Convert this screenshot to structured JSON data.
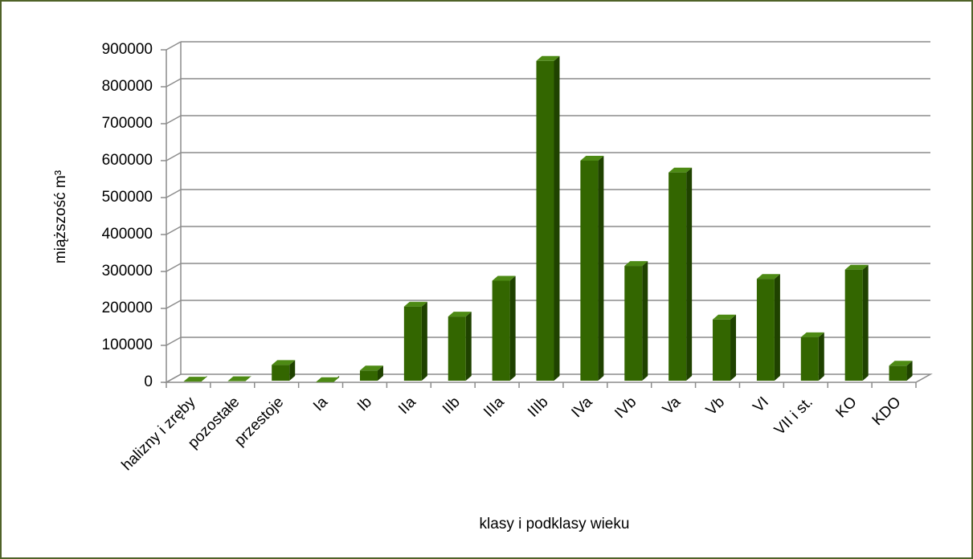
{
  "chart_data": {
    "type": "bar3d",
    "xlabel": "klasy i podklasy wieku",
    "ylabel": "miąższość m³",
    "categories": [
      "halizny i zręby",
      "pozostałe",
      "przestoje",
      "Ia",
      "Ib",
      "IIa",
      "IIb",
      "IIIa",
      "IIIb",
      "IVa",
      "IVb",
      "Va",
      "Vb",
      "VI",
      "VII i st.",
      "KO",
      "KDO"
    ],
    "values": [
      2000,
      3000,
      47000,
      500,
      32000,
      205000,
      178000,
      275000,
      870000,
      600000,
      315000,
      568000,
      170000,
      280000,
      122000,
      305000,
      45000
    ],
    "color": "#336600",
    "ylim": [
      0,
      900000
    ],
    "yticks": [
      0,
      100000,
      200000,
      300000,
      400000,
      500000,
      600000,
      700000,
      800000,
      900000
    ],
    "grid": true
  }
}
